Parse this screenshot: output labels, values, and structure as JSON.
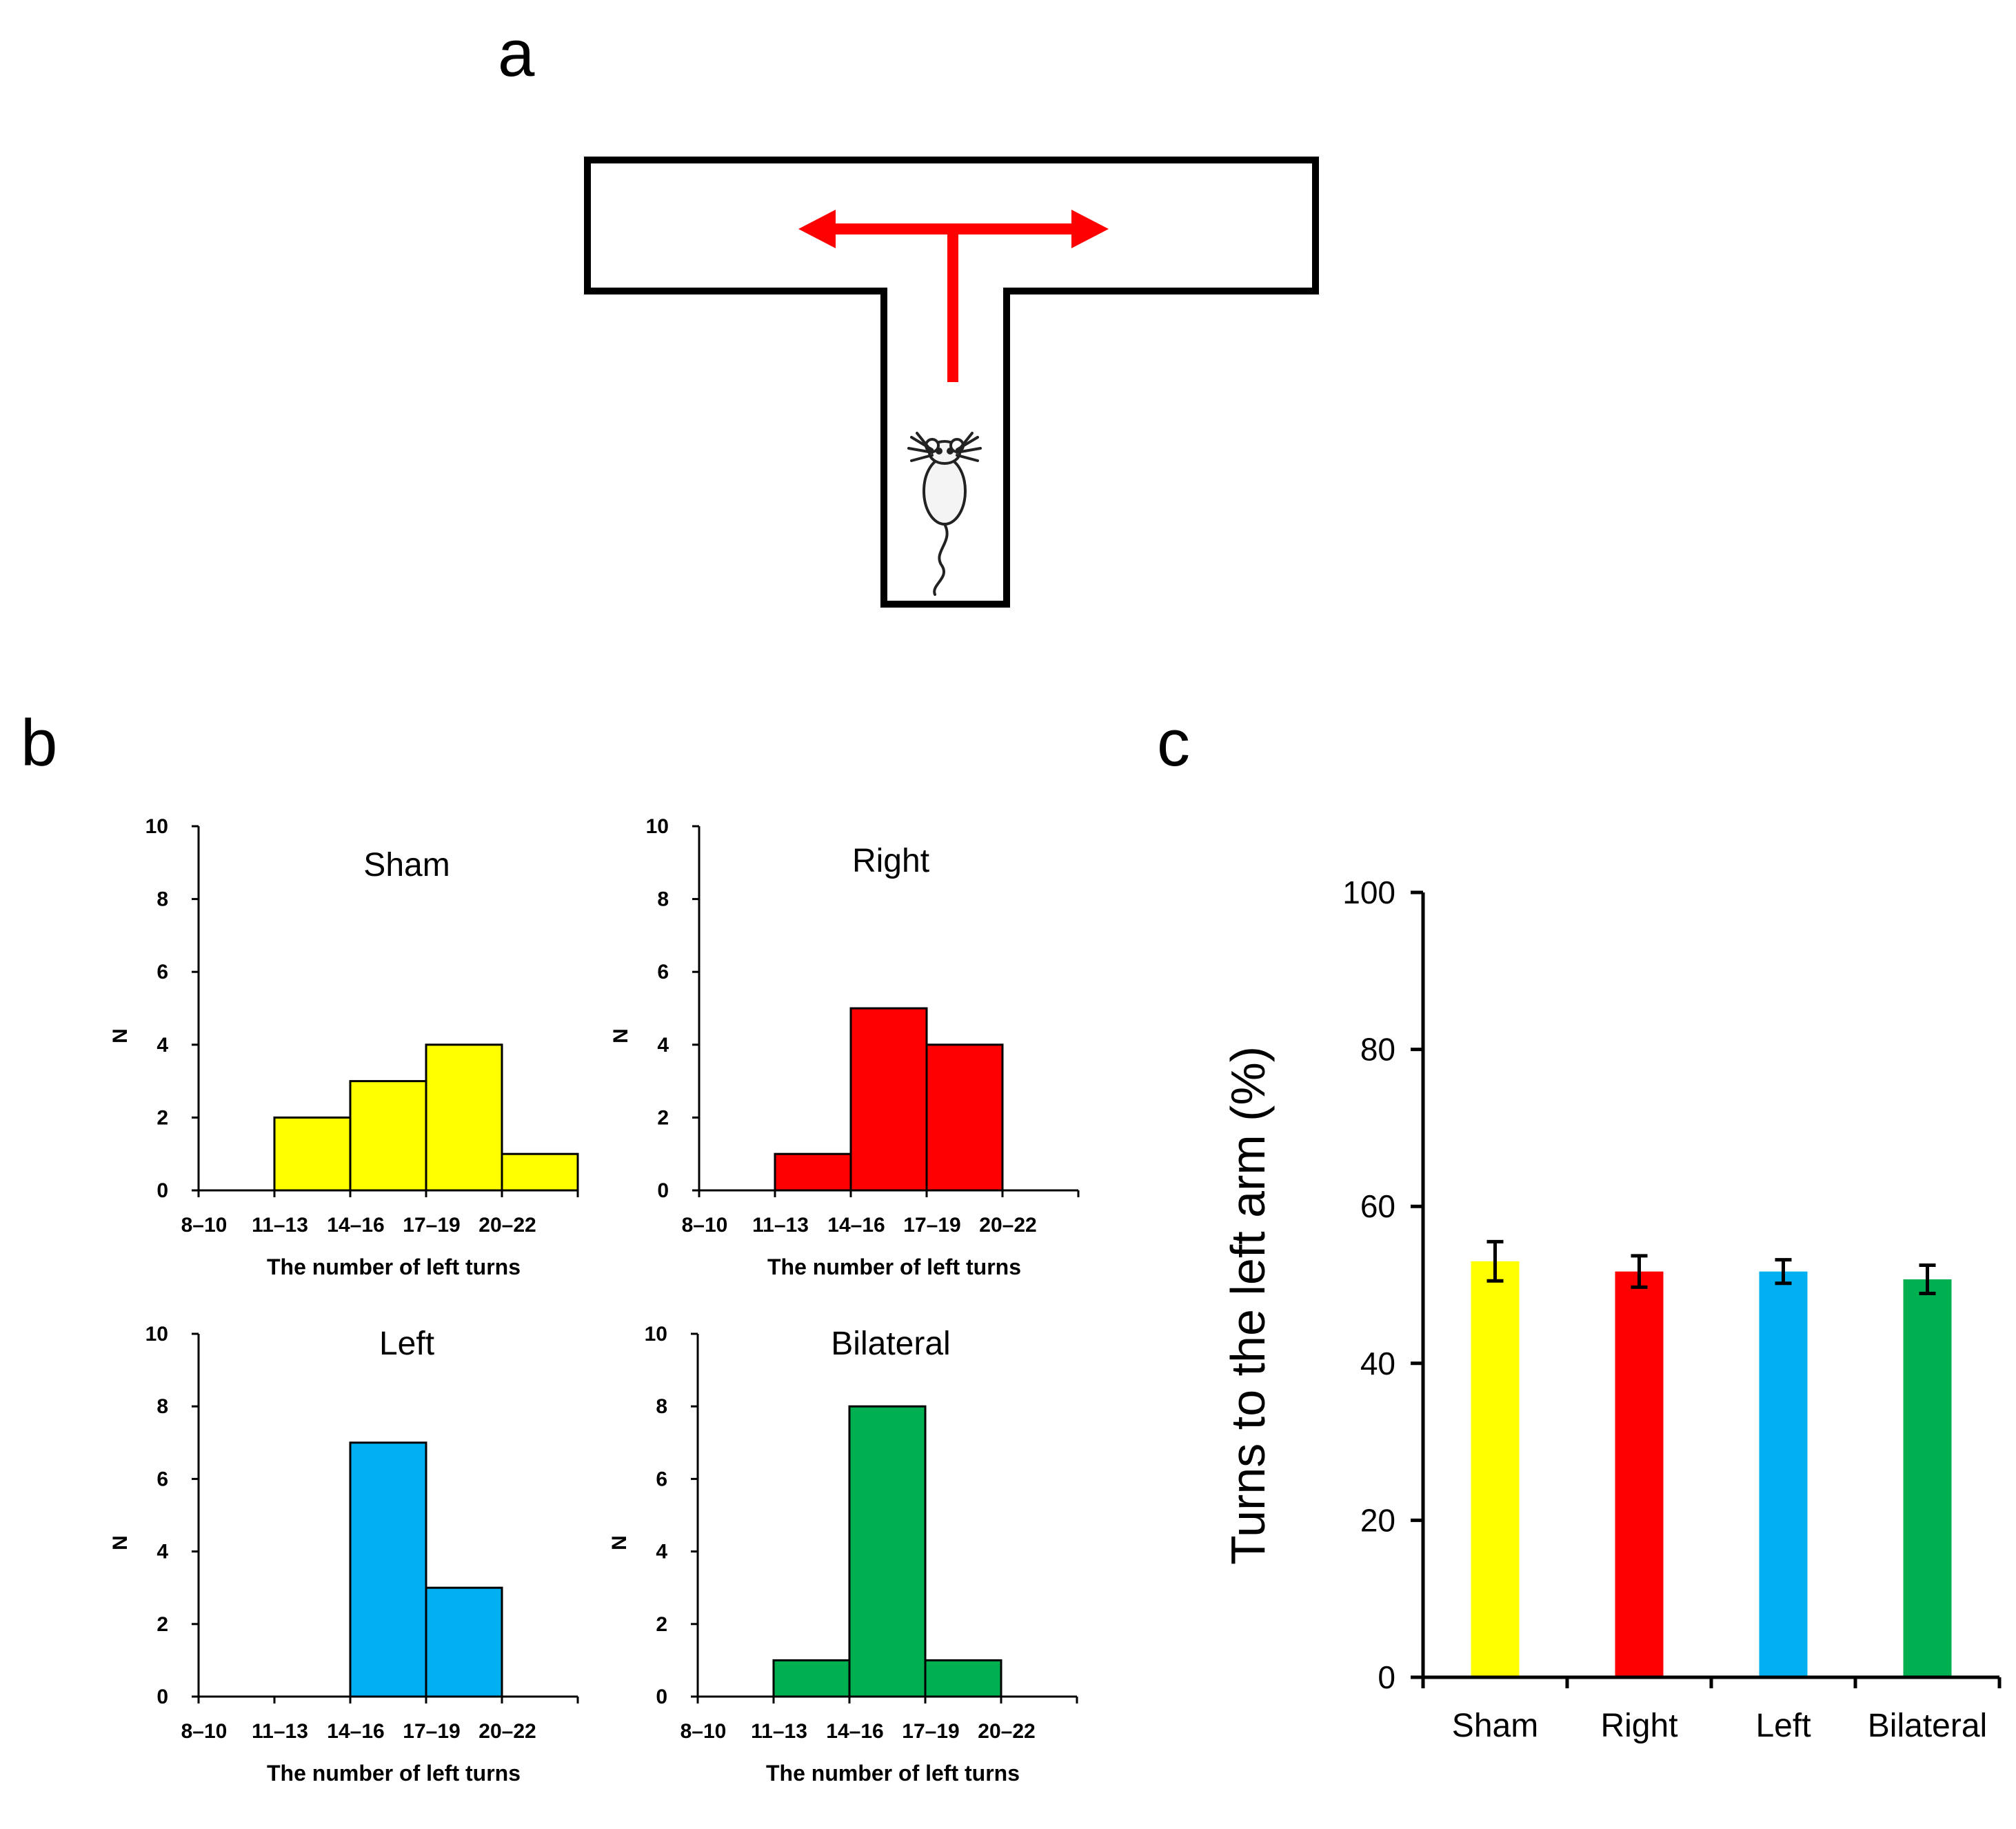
{
  "panels": {
    "a": "a",
    "b": "b",
    "c": "c"
  },
  "colors": {
    "sham": "#ffff00",
    "right": "#ff0000",
    "left": "#00b0f0",
    "bilateral": "#00b050",
    "arrow": "#ff0000"
  },
  "chart_data": [
    {
      "type": "bar",
      "id": "hist-sham",
      "title": "Sham",
      "categories": [
        "8–10",
        "11–13",
        "14–16",
        "17–19",
        "20–22"
      ],
      "values": [
        0,
        2,
        3,
        4,
        1
      ],
      "xlabel": "The number of left turns",
      "ylabel": "N",
      "ylim": [
        0,
        10
      ],
      "yticks": [
        "0",
        "2",
        "4",
        "6",
        "8",
        "10"
      ],
      "color": "#ffff00"
    },
    {
      "type": "bar",
      "id": "hist-right",
      "title": "Right",
      "categories": [
        "8–10",
        "11–13",
        "14–16",
        "17–19",
        "20–22"
      ],
      "values": [
        0,
        1,
        5,
        4,
        0
      ],
      "xlabel": "The number of left turns",
      "ylabel": "N",
      "ylim": [
        0,
        10
      ],
      "yticks": [
        "0",
        "2",
        "4",
        "6",
        "8",
        "10"
      ],
      "color": "#ff0000"
    },
    {
      "type": "bar",
      "id": "hist-left",
      "title": "Left",
      "categories": [
        "8–10",
        "11–13",
        "14–16",
        "17–19",
        "20–22"
      ],
      "values": [
        0,
        0,
        7,
        3,
        0
      ],
      "xlabel": "The number of left turns",
      "ylabel": "N",
      "ylim": [
        0,
        10
      ],
      "yticks": [
        "0",
        "2",
        "4",
        "6",
        "8",
        "10"
      ],
      "color": "#00b0f0"
    },
    {
      "type": "bar",
      "id": "hist-bilateral",
      "title": "Bilateral",
      "categories": [
        "8–10",
        "11–13",
        "14–16",
        "17–19",
        "20–22"
      ],
      "values": [
        0,
        1,
        8,
        1,
        0
      ],
      "xlabel": "The number of left turns",
      "ylabel": "N",
      "ylim": [
        0,
        10
      ],
      "yticks": [
        "0",
        "2",
        "4",
        "6",
        "8",
        "10"
      ],
      "color": "#00b050"
    },
    {
      "type": "bar",
      "id": "bar-left-arm",
      "title": "",
      "categories": [
        "Sham",
        "Right",
        "Left",
        "Bilateral"
      ],
      "values": [
        53,
        51.7,
        51.7,
        50.7
      ],
      "errors": [
        2.5,
        2.0,
        1.5,
        1.8
      ],
      "colors": [
        "#ffff00",
        "#ff0000",
        "#00b0f0",
        "#00b050"
      ],
      "xlabel": "",
      "ylabel": "Turns to the left arm (%)",
      "ylim": [
        0,
        100
      ],
      "yticks": [
        "0",
        "20",
        "40",
        "60",
        "80",
        "100"
      ]
    }
  ]
}
